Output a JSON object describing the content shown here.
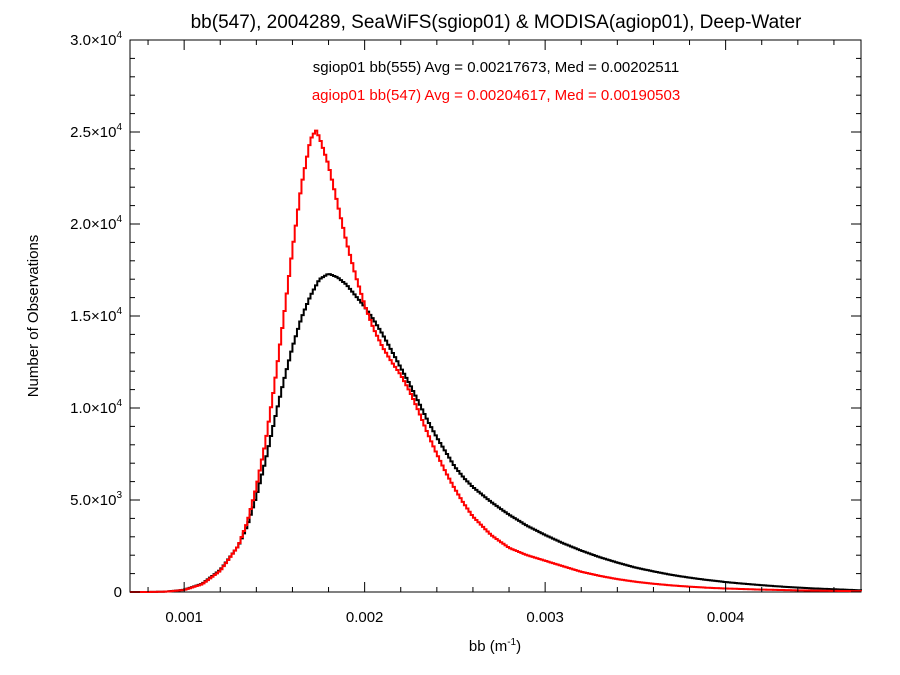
{
  "chart_data": {
    "type": "line",
    "step": true,
    "title": "bb(547), 2004289, SeaWiFS(sgiop01) & MODISA(agiop01), Deep-Water",
    "xlabel_base": "bb (m",
    "xlabel_exp": "-1",
    "xlabel_close": ")",
    "ylabel": "Number of Observations",
    "xlim": [
      0.0007,
      0.00475
    ],
    "ylim": [
      0,
      30000
    ],
    "x_ticks": [
      {
        "value": 0.001,
        "label": "0.001"
      },
      {
        "value": 0.002,
        "label": "0.002"
      },
      {
        "value": 0.003,
        "label": "0.003"
      },
      {
        "value": 0.004,
        "label": "0.004"
      }
    ],
    "y_ticks": [
      {
        "value": 0,
        "mant": "0",
        "exp": ""
      },
      {
        "value": 5000,
        "mant": "5.0×10",
        "exp": "3"
      },
      {
        "value": 10000,
        "mant": "1.0×10",
        "exp": "4"
      },
      {
        "value": 15000,
        "mant": "1.5×10",
        "exp": "4"
      },
      {
        "value": 20000,
        "mant": "2.0×10",
        "exp": "4"
      },
      {
        "value": 25000,
        "mant": "2.5×10",
        "exp": "4"
      },
      {
        "value": 30000,
        "mant": "3.0×10",
        "exp": "4"
      }
    ],
    "grid": false,
    "series": [
      {
        "name": "sgiop01 bb(555) Avg = 0.00217673, Med = 0.00202511",
        "color": "#000000",
        "points": [
          [
            0.0007,
            0
          ],
          [
            0.0008,
            0
          ],
          [
            0.0009,
            20
          ],
          [
            0.001,
            120
          ],
          [
            0.0011,
            450
          ],
          [
            0.0012,
            1200
          ],
          [
            0.0013,
            2500
          ],
          [
            0.00135,
            3600
          ],
          [
            0.0014,
            5200
          ],
          [
            0.00145,
            7100
          ],
          [
            0.0015,
            9300
          ],
          [
            0.00155,
            11400
          ],
          [
            0.0016,
            13300
          ],
          [
            0.00165,
            14900
          ],
          [
            0.0017,
            16100
          ],
          [
            0.00175,
            17000
          ],
          [
            0.0018,
            17300
          ],
          [
            0.00185,
            17100
          ],
          [
            0.0019,
            16700
          ],
          [
            0.00195,
            16100
          ],
          [
            0.002,
            15500
          ],
          [
            0.00205,
            14800
          ],
          [
            0.0021,
            14000
          ],
          [
            0.00215,
            13100
          ],
          [
            0.0022,
            12200
          ],
          [
            0.00225,
            11300
          ],
          [
            0.0023,
            10300
          ],
          [
            0.00235,
            9300
          ],
          [
            0.0024,
            8400
          ],
          [
            0.00245,
            7600
          ],
          [
            0.0025,
            6800
          ],
          [
            0.00255,
            6200
          ],
          [
            0.0026,
            5700
          ],
          [
            0.0027,
            4900
          ],
          [
            0.0028,
            4200
          ],
          [
            0.0029,
            3600
          ],
          [
            0.003,
            3100
          ],
          [
            0.0031,
            2650
          ],
          [
            0.0032,
            2250
          ],
          [
            0.0033,
            1900
          ],
          [
            0.0034,
            1600
          ],
          [
            0.0035,
            1330
          ],
          [
            0.0036,
            1120
          ],
          [
            0.0037,
            930
          ],
          [
            0.0038,
            780
          ],
          [
            0.0039,
            650
          ],
          [
            0.004,
            540
          ],
          [
            0.0041,
            450
          ],
          [
            0.0042,
            370
          ],
          [
            0.0043,
            300
          ],
          [
            0.0044,
            240
          ],
          [
            0.0045,
            190
          ],
          [
            0.0046,
            150
          ],
          [
            0.0047,
            110
          ],
          [
            0.00475,
            90
          ]
        ]
      },
      {
        "name": "agiop01 bb(547) Avg = 0.00204617, Med = 0.00190503",
        "color": "#ff0000",
        "points": [
          [
            0.0007,
            0
          ],
          [
            0.0008,
            0
          ],
          [
            0.0009,
            20
          ],
          [
            0.001,
            110
          ],
          [
            0.0011,
            420
          ],
          [
            0.0012,
            1150
          ],
          [
            0.0013,
            2500
          ],
          [
            0.00135,
            3800
          ],
          [
            0.0014,
            5700
          ],
          [
            0.00145,
            8100
          ],
          [
            0.0015,
            11200
          ],
          [
            0.00155,
            14800
          ],
          [
            0.0016,
            18600
          ],
          [
            0.00165,
            22100
          ],
          [
            0.0017,
            24600
          ],
          [
            0.00173,
            25100
          ],
          [
            0.00175,
            24700
          ],
          [
            0.0018,
            23200
          ],
          [
            0.00185,
            21100
          ],
          [
            0.0019,
            19000
          ],
          [
            0.00195,
            17200
          ],
          [
            0.002,
            15600
          ],
          [
            0.00205,
            14300
          ],
          [
            0.0021,
            13300
          ],
          [
            0.00215,
            12500
          ],
          [
            0.0022,
            11800
          ],
          [
            0.00225,
            10900
          ],
          [
            0.0023,
            9800
          ],
          [
            0.00235,
            8600
          ],
          [
            0.0024,
            7500
          ],
          [
            0.00245,
            6500
          ],
          [
            0.0025,
            5600
          ],
          [
            0.00255,
            4800
          ],
          [
            0.0026,
            4100
          ],
          [
            0.0027,
            3100
          ],
          [
            0.0028,
            2400
          ],
          [
            0.0029,
            2000
          ],
          [
            0.003,
            1700
          ],
          [
            0.0031,
            1400
          ],
          [
            0.0032,
            1100
          ],
          [
            0.0033,
            880
          ],
          [
            0.0034,
            700
          ],
          [
            0.0035,
            560
          ],
          [
            0.0036,
            450
          ],
          [
            0.0037,
            360
          ],
          [
            0.0038,
            290
          ],
          [
            0.0039,
            230
          ],
          [
            0.004,
            190
          ],
          [
            0.0041,
            160
          ],
          [
            0.0042,
            130
          ],
          [
            0.0043,
            110
          ],
          [
            0.0044,
            90
          ],
          [
            0.0045,
            75
          ],
          [
            0.0046,
            60
          ],
          [
            0.0047,
            50
          ],
          [
            0.00475,
            45
          ]
        ]
      }
    ]
  }
}
